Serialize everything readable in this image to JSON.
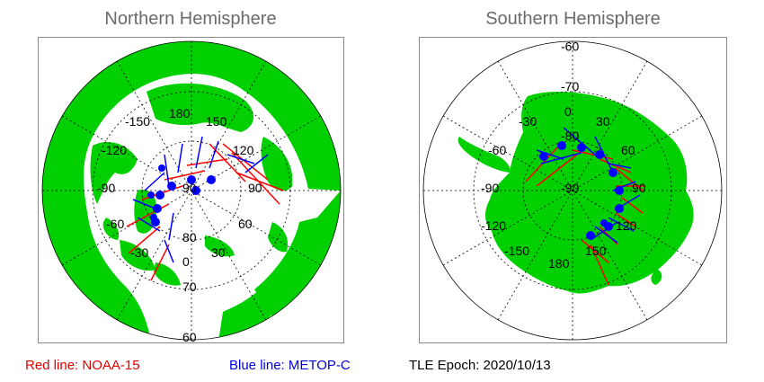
{
  "titles": {
    "north": "Northern Hemisphere",
    "south": "Southern Hemisphere"
  },
  "north": {
    "lon_labels": [
      "180",
      "150",
      "-150",
      "120",
      "-120",
      "90",
      "-90",
      "60",
      "-60",
      "30",
      "-30",
      "0"
    ],
    "lat_labels": [
      "90",
      "80",
      "70",
      "60"
    ]
  },
  "south": {
    "lon_labels": [
      "0",
      "30",
      "-30",
      "60",
      "-60",
      "90",
      "-90",
      "120",
      "-120",
      "150",
      "-150",
      "180"
    ],
    "lat_labels": [
      "-60",
      "-70",
      "-80",
      "-90"
    ]
  },
  "legend": {
    "red": "Red line: NOAA-15",
    "blue": "Blue line: METOP-C",
    "epoch": "TLE Epoch: 2020/10/13"
  },
  "colors": {
    "land": "#00d000",
    "noaa15": "#ff0000",
    "metopc": "#0000ff",
    "title": "#6b6b6b"
  }
}
